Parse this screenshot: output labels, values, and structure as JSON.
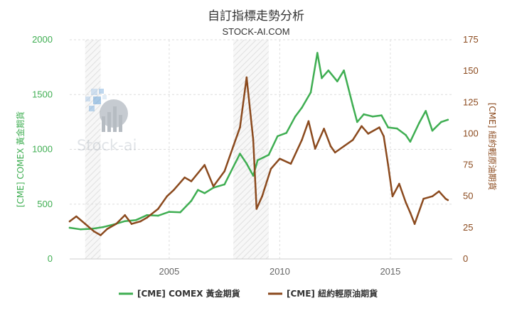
{
  "chart_data": {
    "type": "line",
    "title": "自訂指標走勢分析",
    "subtitle": "STOCK-AI.COM",
    "watermark": "Stock-ai",
    "xlabel": "",
    "x_ticks": [
      2005,
      2010,
      2015
    ],
    "xlim": [
      2000.5,
      2017.8
    ],
    "left_axis": {
      "label": "[CME] COMEX 黃金期貨",
      "ylim": [
        0,
        2000
      ],
      "ticks": [
        0,
        500,
        1000,
        1500,
        2000
      ],
      "color": "#3fae52"
    },
    "right_axis": {
      "label": "[CME] 紐約輕原油期貨",
      "ylim": [
        0,
        175
      ],
      "ticks": [
        0,
        25,
        50,
        75,
        100,
        125,
        150,
        175
      ],
      "color": "#8b4a1e"
    },
    "grid": true,
    "legend_position": "bottom",
    "shaded_periods": [
      [
        2001.2,
        2001.9
      ],
      [
        2007.9,
        2009.5
      ]
    ],
    "series": [
      {
        "name": "[CME] COMEX 黃金期貨",
        "axis": "left",
        "color": "#3fae52",
        "x": [
          2000.5,
          2001.0,
          2001.5,
          2002.0,
          2002.5,
          2003.0,
          2003.5,
          2004.0,
          2004.5,
          2005.0,
          2005.5,
          2006.0,
          2006.3,
          2006.6,
          2007.0,
          2007.5,
          2008.0,
          2008.2,
          2008.5,
          2008.8,
          2009.0,
          2009.5,
          2009.9,
          2010.3,
          2010.7,
          2011.0,
          2011.4,
          2011.7,
          2011.9,
          2012.2,
          2012.6,
          2012.9,
          2013.3,
          2013.5,
          2013.8,
          2014.2,
          2014.6,
          2014.9,
          2015.3,
          2015.7,
          2015.9,
          2016.3,
          2016.6,
          2016.9,
          2017.3,
          2017.6
        ],
        "values": [
          285,
          270,
          275,
          290,
          315,
          345,
          355,
          400,
          395,
          430,
          425,
          530,
          630,
          600,
          650,
          680,
          880,
          960,
          870,
          760,
          900,
          950,
          1120,
          1150,
          1300,
          1380,
          1520,
          1880,
          1650,
          1720,
          1620,
          1720,
          1400,
          1250,
          1320,
          1300,
          1310,
          1200,
          1190,
          1130,
          1070,
          1240,
          1350,
          1170,
          1250,
          1270
        ]
      },
      {
        "name": "[CME] 紐約輕原油期貨",
        "axis": "right",
        "color": "#8b4a1e",
        "x": [
          2000.5,
          2000.8,
          2001.2,
          2001.6,
          2001.9,
          2002.2,
          2002.6,
          2003.0,
          2003.3,
          2003.7,
          2004.0,
          2004.5,
          2004.9,
          2005.2,
          2005.7,
          2006.0,
          2006.6,
          2007.0,
          2007.5,
          2007.9,
          2008.2,
          2008.5,
          2008.8,
          2008.95,
          2009.2,
          2009.6,
          2010.0,
          2010.5,
          2011.0,
          2011.3,
          2011.6,
          2012.0,
          2012.3,
          2012.5,
          2012.9,
          2013.3,
          2013.7,
          2014.0,
          2014.5,
          2014.7,
          2014.9,
          2015.1,
          2015.4,
          2015.7,
          2015.9,
          2016.1,
          2016.5,
          2016.9,
          2017.2,
          2017.5,
          2017.6
        ],
        "values": [
          30,
          34,
          28,
          22,
          19,
          24,
          28,
          35,
          28,
          30,
          33,
          40,
          50,
          55,
          65,
          62,
          75,
          58,
          70,
          90,
          105,
          145,
          95,
          40,
          50,
          72,
          80,
          76,
          95,
          110,
          88,
          104,
          90,
          85,
          90,
          95,
          106,
          100,
          105,
          98,
          75,
          50,
          60,
          45,
          37,
          28,
          48,
          50,
          54,
          48,
          47
        ]
      }
    ]
  }
}
